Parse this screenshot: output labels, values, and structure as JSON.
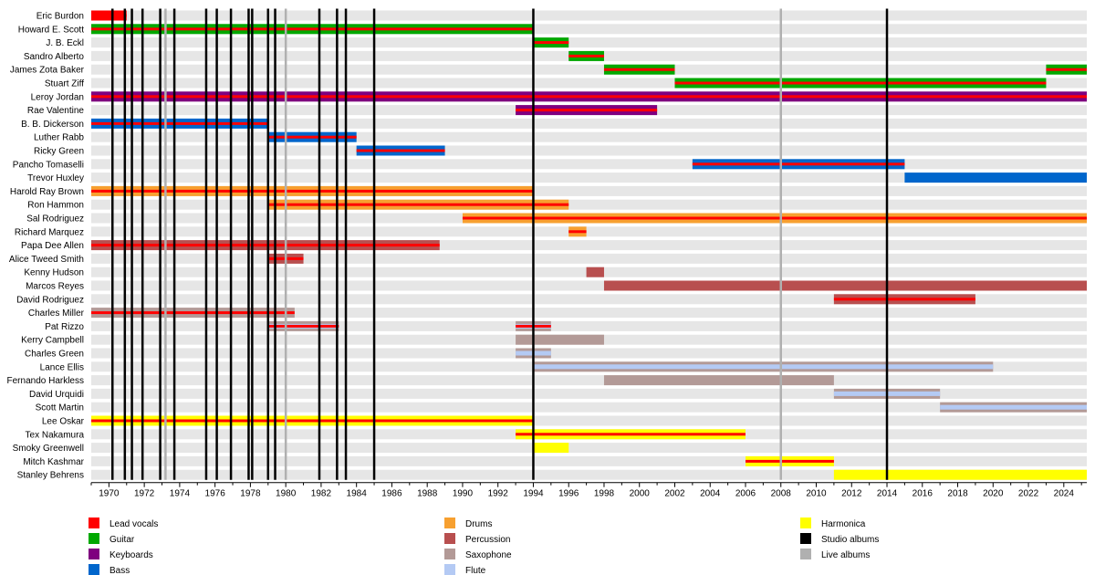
{
  "chart_data": {
    "type": "timeline",
    "x_range": [
      1969,
      2025.3
    ],
    "x_ticks": [
      "1970",
      "1972",
      "1974",
      "1976",
      "1978",
      "1980",
      "1982",
      "1984",
      "1986",
      "1988",
      "1990",
      "1992",
      "1994",
      "1996",
      "1998",
      "2000",
      "2002",
      "2004",
      "2006",
      "2008",
      "2010",
      "2012",
      "2014",
      "2016",
      "2018",
      "2020",
      "2022",
      "2024"
    ],
    "colors": {
      "Lead vocals": "#ff0000",
      "Guitar": "#00a800",
      "Keyboards": "#7f007f",
      "Bass": "#0066cc",
      "Drums": "#f7a030",
      "Percussion": "#b84f4f",
      "Saxophone": "#b39a97",
      "Flute": "#b4caf4",
      "Harmonica": "#ffff00",
      "Studio albums": "#000000",
      "Live albums": "#b0b0b0"
    },
    "legend": [
      "Lead vocals",
      "Guitar",
      "Keyboards",
      "Bass",
      "Drums",
      "Percussion",
      "Saxophone",
      "Flute",
      "Harmonica",
      "Studio albums",
      "Live albums"
    ],
    "members": [
      {
        "name": "Eric Burdon",
        "periods": [
          {
            "start": 1969.0,
            "end": 1971.0,
            "role": "Lead vocals",
            "vocals": true
          }
        ]
      },
      {
        "name": "Howard E. Scott",
        "periods": [
          {
            "start": 1969.0,
            "end": 1994.0,
            "role": "Guitar",
            "vocals": true
          }
        ]
      },
      {
        "name": "J. B. Eckl",
        "periods": [
          {
            "start": 1994.0,
            "end": 1996.0,
            "role": "Guitar",
            "vocals": true
          }
        ]
      },
      {
        "name": "Sandro Alberto",
        "periods": [
          {
            "start": 1996.0,
            "end": 1998.0,
            "role": "Guitar",
            "vocals": true
          }
        ]
      },
      {
        "name": "James Zota Baker",
        "periods": [
          {
            "start": 1998.0,
            "end": 2002.0,
            "role": "Guitar",
            "vocals": true
          },
          {
            "start": 2023.0,
            "end": 2025.3,
            "role": "Guitar",
            "vocals": true
          }
        ]
      },
      {
        "name": "Stuart Ziff",
        "periods": [
          {
            "start": 2002.0,
            "end": 2023.0,
            "role": "Guitar",
            "vocals": true
          }
        ]
      },
      {
        "name": "Leroy Jordan",
        "periods": [
          {
            "start": 1969.0,
            "end": 2025.3,
            "role": "Keyboards",
            "vocals": true
          }
        ]
      },
      {
        "name": "Rae Valentine",
        "periods": [
          {
            "start": 1993.0,
            "end": 2001.0,
            "role": "Keyboards",
            "vocals": true
          }
        ]
      },
      {
        "name": "B. B. Dickerson",
        "periods": [
          {
            "start": 1969.0,
            "end": 1979.0,
            "role": "Bass",
            "vocals": true
          }
        ]
      },
      {
        "name": "Luther Rabb",
        "periods": [
          {
            "start": 1979.0,
            "end": 1984.0,
            "role": "Bass",
            "vocals": true
          }
        ]
      },
      {
        "name": "Ricky Green",
        "periods": [
          {
            "start": 1984.0,
            "end": 1989.0,
            "role": "Bass",
            "vocals": true
          }
        ]
      },
      {
        "name": "Pancho Tomaselli",
        "periods": [
          {
            "start": 2003.0,
            "end": 2015.0,
            "role": "Bass",
            "vocals": true
          }
        ]
      },
      {
        "name": "Trevor Huxley",
        "periods": [
          {
            "start": 2015.0,
            "end": 2025.3,
            "role": "Bass",
            "vocals": false
          }
        ]
      },
      {
        "name": "Harold Ray Brown",
        "periods": [
          {
            "start": 1969.0,
            "end": 1994.0,
            "role": "Drums",
            "vocals": true
          }
        ]
      },
      {
        "name": "Ron Hammon",
        "periods": [
          {
            "start": 1979.0,
            "end": 1996.0,
            "role": "Drums",
            "vocals": true
          }
        ]
      },
      {
        "name": "Sal Rodriguez",
        "periods": [
          {
            "start": 1990.0,
            "end": 2025.3,
            "role": "Drums",
            "vocals": true
          }
        ]
      },
      {
        "name": "Richard Marquez",
        "periods": [
          {
            "start": 1996.0,
            "end": 1997.0,
            "role": "Drums",
            "vocals": true
          }
        ]
      },
      {
        "name": "Papa Dee Allen",
        "periods": [
          {
            "start": 1969.0,
            "end": 1988.7,
            "role": "Percussion",
            "vocals": true
          }
        ]
      },
      {
        "name": "Alice Tweed Smith",
        "periods": [
          {
            "start": 1979.0,
            "end": 1981.0,
            "role": "Percussion",
            "vocals": true
          }
        ]
      },
      {
        "name": "Kenny Hudson",
        "periods": [
          {
            "start": 1997.0,
            "end": 1998.0,
            "role": "Percussion",
            "vocals": false
          }
        ]
      },
      {
        "name": "Marcos Reyes",
        "periods": [
          {
            "start": 1998.0,
            "end": 2025.3,
            "role": "Percussion",
            "vocals": false
          }
        ]
      },
      {
        "name": "David Rodriguez",
        "periods": [
          {
            "start": 2011.0,
            "end": 2019.0,
            "role": "Percussion",
            "vocals": true
          }
        ]
      },
      {
        "name": "Charles Miller",
        "periods": [
          {
            "start": 1969.0,
            "end": 1980.5,
            "role": "Saxophone",
            "vocals": true
          }
        ]
      },
      {
        "name": "Pat Rizzo",
        "periods": [
          {
            "start": 1979.0,
            "end": 1983.0,
            "role": "Saxophone",
            "vocals": true,
            "flute": true
          },
          {
            "start": 1993.0,
            "end": 1995.0,
            "role": "Saxophone",
            "vocals": true,
            "flute": true
          }
        ]
      },
      {
        "name": "Kerry Campbell",
        "periods": [
          {
            "start": 1993.0,
            "end": 1998.0,
            "role": "Saxophone",
            "vocals": false
          }
        ]
      },
      {
        "name": "Charles Green",
        "periods": [
          {
            "start": 1993.0,
            "end": 1995.0,
            "role": "Saxophone",
            "vocals": false,
            "flute": true
          }
        ]
      },
      {
        "name": "Lance Ellis",
        "periods": [
          {
            "start": 1994.0,
            "end": 2020.0,
            "role": "Saxophone",
            "vocals": false,
            "flute": true
          }
        ]
      },
      {
        "name": "Fernando Harkless",
        "periods": [
          {
            "start": 1998.0,
            "end": 2011.0,
            "role": "Saxophone",
            "vocals": false
          }
        ]
      },
      {
        "name": "David Urquidi",
        "periods": [
          {
            "start": 2011.0,
            "end": 2017.0,
            "role": "Saxophone",
            "vocals": false,
            "flute": true
          }
        ]
      },
      {
        "name": "Scott Martin",
        "periods": [
          {
            "start": 2017.0,
            "end": 2025.3,
            "role": "Saxophone",
            "vocals": false,
            "flute": true
          }
        ]
      },
      {
        "name": "Lee Oskar",
        "periods": [
          {
            "start": 1969.0,
            "end": 1994.0,
            "role": "Harmonica",
            "vocals": true
          }
        ]
      },
      {
        "name": "Tex Nakamura",
        "periods": [
          {
            "start": 1993.0,
            "end": 2006.0,
            "role": "Harmonica",
            "vocals": true
          }
        ]
      },
      {
        "name": "Smoky Greenwell",
        "periods": [
          {
            "start": 1994.0,
            "end": 1996.0,
            "role": "Harmonica",
            "vocals": false
          }
        ]
      },
      {
        "name": "Mitch Kashmar",
        "periods": [
          {
            "start": 2006.0,
            "end": 2011.0,
            "role": "Harmonica",
            "vocals": true
          }
        ]
      },
      {
        "name": "Stanley Behrens",
        "periods": [
          {
            "start": 2011.0,
            "end": 2025.3,
            "role": "Harmonica",
            "vocals": false
          }
        ]
      }
    ],
    "studio_albums": [
      1970.2,
      1970.9,
      1971.3,
      1971.9,
      1972.9,
      1973.7,
      1975.5,
      1976.1,
      1976.9,
      1977.9,
      1978.1,
      1979.0,
      1979.4,
      1981.9,
      1982.9,
      1983.4,
      1985.0,
      1994.0,
      2014.0
    ],
    "live_albums": [
      1973.2,
      1980.0,
      2008.0
    ]
  }
}
